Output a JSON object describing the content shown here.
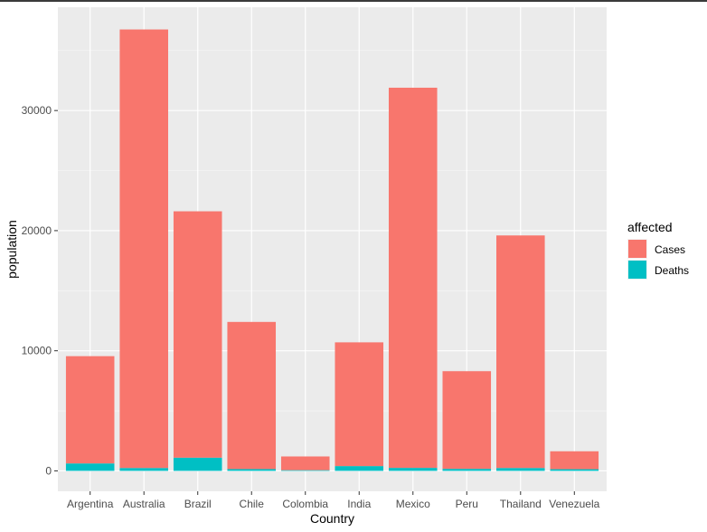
{
  "chart_data": {
    "type": "bar",
    "stacked": true,
    "xlabel": "Country",
    "ylabel": "population",
    "ylim": [
      -1700,
      38600
    ],
    "y_ticks": [
      0,
      10000,
      20000,
      30000
    ],
    "y_tick_labels": [
      "0",
      "10000",
      "20000",
      "30000"
    ],
    "categories": [
      "Argentina",
      "Australia",
      "Brazil",
      "Chile",
      "Colombia",
      "India",
      "Mexico",
      "Peru",
      "Thailand",
      "Venezuela"
    ],
    "series": [
      {
        "name": "Deaths",
        "color": "#00BFC4",
        "values": [
          620,
          240,
          1100,
          150,
          60,
          400,
          250,
          170,
          240,
          140
        ]
      },
      {
        "name": "Cases",
        "color": "#F8766D",
        "values": [
          8930,
          36510,
          20510,
          12250,
          1140,
          10300,
          31650,
          8130,
          19360,
          1490
        ]
      }
    ],
    "legend": {
      "title": "affected",
      "position": "right",
      "entries": [
        {
          "label": "Cases",
          "color": "#F8766D"
        },
        {
          "label": "Deaths",
          "color": "#00BFC4"
        }
      ]
    }
  }
}
